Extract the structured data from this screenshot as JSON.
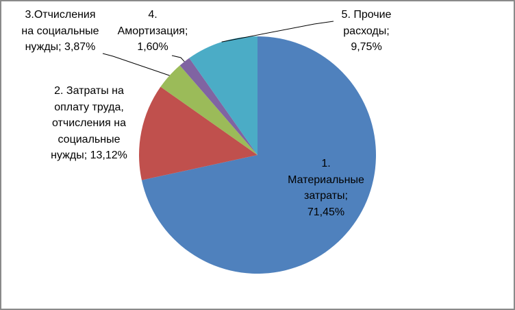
{
  "frame": {
    "background_color": "#FFFFFF",
    "border_color": "#8A8A8A"
  },
  "chart_data": {
    "type": "pie",
    "title": "",
    "legend": "none",
    "start_angle_deg": 0,
    "direction": "clockwise",
    "label_format": "category; percent",
    "text_color": "#000000",
    "leader_line_color": "#000000",
    "slices": [
      {
        "name": "1. Материальные затраты",
        "value": 71.45,
        "percent_label": "71,45%",
        "color": "#4F81BD",
        "label_position": "inside",
        "leader_line": false,
        "display_text": "1.\nМатериальные\nзатраты;\n71,45%"
      },
      {
        "name": "2. Затраты на оплату труда, отчисления на социальные нужды",
        "value": 13.12,
        "percent_label": "13,12%",
        "color": "#C0504D",
        "label_position": "outside",
        "leader_line": false,
        "display_text": "2. Затраты на\nоплату труда,\nотчисления на\nсоциальные\nнужды; 13,12%"
      },
      {
        "name": "3.Отчисления на социальные нужды",
        "value": 3.87,
        "percent_label": "3,87%",
        "color": "#9BBB59",
        "label_position": "outside",
        "leader_line": true,
        "display_text": "3.Отчисления\nна социальные\nнужды; 3,87%"
      },
      {
        "name": "4. Амортизация",
        "value": 1.6,
        "percent_label": "1,60%",
        "color": "#8064A2",
        "label_position": "outside",
        "leader_line": true,
        "display_text": "4.\nАмортизация;\n1,60%"
      },
      {
        "name": "5. Прочие расходы",
        "value": 9.75,
        "percent_label": "9,75%",
        "color": "#4BACC6",
        "label_position": "outside",
        "leader_line": true,
        "display_text": "5. Прочие\nрасходы;\n9,75%"
      }
    ]
  }
}
